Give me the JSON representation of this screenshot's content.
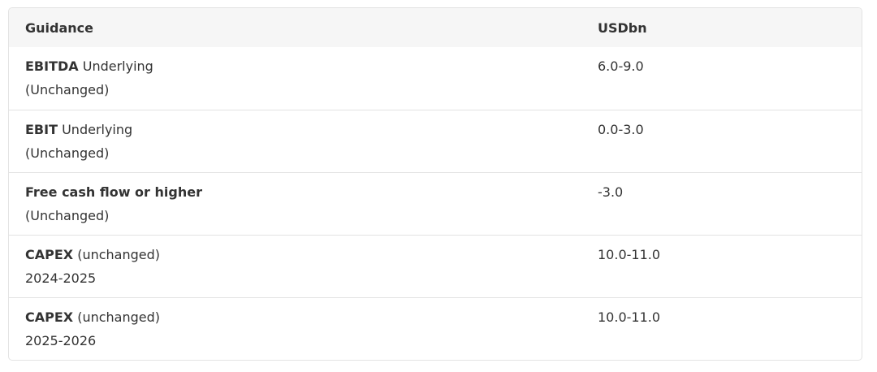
{
  "headers": [
    "Guidance",
    "USDbn"
  ],
  "rows": [
    {
      "bold": "EBITDA",
      "rest": " Underlying",
      "line2": "(Unchanged)",
      "value": "6.0-9.0"
    },
    {
      "bold": "EBIT",
      "rest": " Underlying",
      "line2": "(Unchanged)",
      "value": "0.0-3.0"
    },
    {
      "bold": "Free cash flow or higher",
      "rest": "",
      "line2": "(Unchanged)",
      "value": "-3.0"
    },
    {
      "bold": "CAPEX",
      "rest": " (unchanged)",
      "line2": "2024-2025",
      "value": "10.0-11.0"
    },
    {
      "bold": "CAPEX",
      "rest": " (unchanged)",
      "line2": "2025-2026",
      "value": "10.0-11.0"
    }
  ]
}
